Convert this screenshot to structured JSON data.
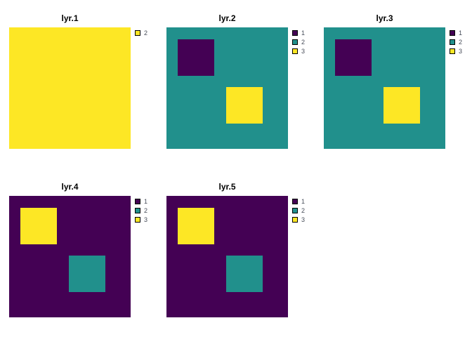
{
  "figure": {
    "background": "#ffffff",
    "palette": {
      "purple": "#440154",
      "teal": "#21908C",
      "yellow": "#FDE725"
    }
  },
  "panels": [
    {
      "title": "lyr.1",
      "raster": {
        "background": "#FDE725"
      },
      "legend": [
        {
          "label": "2",
          "color": "#FDE725"
        }
      ]
    },
    {
      "title": "lyr.2",
      "raster": {
        "background": "#21908C",
        "block_top_left": "#440154",
        "block_middle": "#FDE725"
      },
      "legend": [
        {
          "label": "1",
          "color": "#440154"
        },
        {
          "label": "2",
          "color": "#21908C"
        },
        {
          "label": "3",
          "color": "#FDE725"
        }
      ]
    },
    {
      "title": "lyr.3",
      "raster": {
        "background": "#21908C",
        "block_top_left": "#440154",
        "block_middle": "#FDE725"
      },
      "legend": [
        {
          "label": "1",
          "color": "#440154"
        },
        {
          "label": "2",
          "color": "#21908C"
        },
        {
          "label": "3",
          "color": "#FDE725"
        }
      ]
    },
    {
      "title": "lyr.4",
      "raster": {
        "background": "#440154",
        "block_top_left": "#FDE725",
        "block_middle": "#21908C"
      },
      "legend": [
        {
          "label": "1",
          "color": "#440154"
        },
        {
          "label": "2",
          "color": "#21908C"
        },
        {
          "label": "3",
          "color": "#FDE725"
        }
      ]
    },
    {
      "title": "lyr.5",
      "raster": {
        "background": "#440154",
        "block_top_left": "#FDE725",
        "block_middle": "#21908C"
      },
      "legend": [
        {
          "label": "1",
          "color": "#440154"
        },
        {
          "label": "2",
          "color": "#21908C"
        },
        {
          "label": "3",
          "color": "#FDE725"
        }
      ]
    }
  ],
  "chart_data": {
    "type": "heatmap",
    "title": "",
    "panels_layout": "3 columns x 2 rows of panels; 5 categorical raster layers, bottom-right cell empty",
    "grid": {
      "nrows": 10,
      "ncols": 10
    },
    "regions": {
      "top_left_block": {
        "rows": [
          2,
          4
        ],
        "cols": [
          2,
          4
        ]
      },
      "middle_block": {
        "rows": [
          6,
          8
        ],
        "cols": [
          6,
          8
        ]
      }
    },
    "value_colors": {
      "1": "#440154",
      "2": "#21908C",
      "3": "#FDE725"
    },
    "layers": [
      {
        "name": "lyr.1",
        "background_value": 2,
        "top_left_block_value": 2,
        "middle_block_value": 2,
        "legend_values": [
          "2"
        ],
        "rendered_uniform_color": "#FDE725"
      },
      {
        "name": "lyr.2",
        "background_value": 2,
        "top_left_block_value": 1,
        "middle_block_value": 3,
        "legend_values": [
          "1",
          "2",
          "3"
        ]
      },
      {
        "name": "lyr.3",
        "background_value": 2,
        "top_left_block_value": 1,
        "middle_block_value": 3,
        "legend_values": [
          "1",
          "2",
          "3"
        ]
      },
      {
        "name": "lyr.4",
        "background_value": 1,
        "top_left_block_value": 3,
        "middle_block_value": 2,
        "legend_values": [
          "1",
          "2",
          "3"
        ]
      },
      {
        "name": "lyr.5",
        "background_value": 1,
        "top_left_block_value": 3,
        "middle_block_value": 2,
        "legend_values": [
          "1",
          "2",
          "3"
        ]
      }
    ],
    "legend_position": "top-right of each panel",
    "grid_lines": false,
    "axes": false
  }
}
